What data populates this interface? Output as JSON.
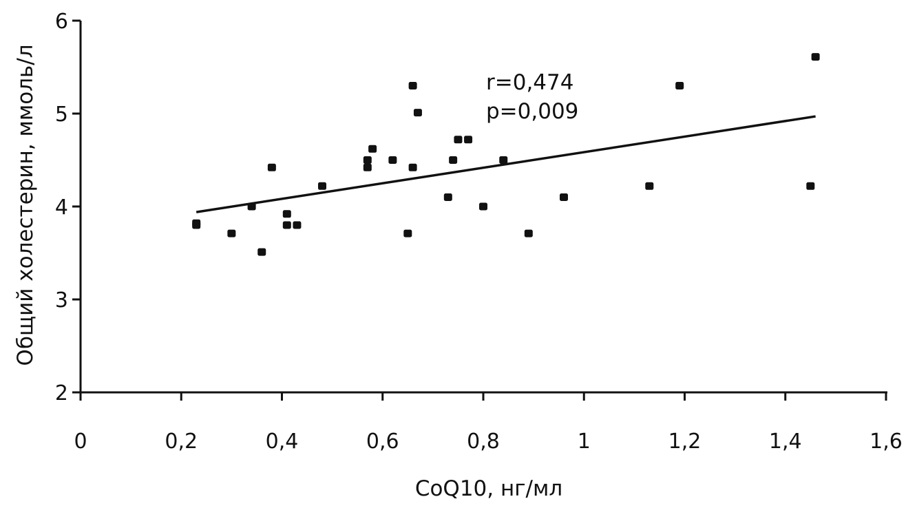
{
  "chart_data": {
    "type": "scatter",
    "title": "",
    "xlabel": "CoQ10, нг/мл",
    "ylabel": "Общий холестерин, ммоль/л",
    "xlim": [
      0,
      1.6
    ],
    "ylim": [
      2,
      6
    ],
    "x_ticks": [
      0,
      0.2,
      0.4,
      0.6,
      0.8,
      1.0,
      1.2,
      1.4,
      1.6
    ],
    "x_tick_labels": [
      "0",
      "0,2",
      "0,4",
      "0,6",
      "0,8",
      "1",
      "1,2",
      "1,4",
      "1,6"
    ],
    "y_ticks": [
      2,
      3,
      4,
      5,
      6
    ],
    "y_tick_labels": [
      "2",
      "3",
      "4",
      "5",
      "6"
    ],
    "grid": false,
    "legend": null,
    "annotations": [
      "r=0,474",
      "p=0,009"
    ],
    "marker_color": "#111111",
    "series": [
      {
        "name": "data",
        "points": [
          {
            "x": 0.23,
            "y": 3.8
          },
          {
            "x": 0.23,
            "y": 3.82
          },
          {
            "x": 0.3,
            "y": 3.71
          },
          {
            "x": 0.34,
            "y": 4.0
          },
          {
            "x": 0.36,
            "y": 3.51
          },
          {
            "x": 0.38,
            "y": 4.42
          },
          {
            "x": 0.41,
            "y": 3.92
          },
          {
            "x": 0.41,
            "y": 3.8
          },
          {
            "x": 0.43,
            "y": 3.8
          },
          {
            "x": 0.48,
            "y": 4.22
          },
          {
            "x": 0.57,
            "y": 4.5
          },
          {
            "x": 0.57,
            "y": 4.42
          },
          {
            "x": 0.58,
            "y": 4.62
          },
          {
            "x": 0.62,
            "y": 4.5
          },
          {
            "x": 0.65,
            "y": 3.71
          },
          {
            "x": 0.66,
            "y": 5.3
          },
          {
            "x": 0.66,
            "y": 4.42
          },
          {
            "x": 0.67,
            "y": 5.01
          },
          {
            "x": 0.73,
            "y": 4.1
          },
          {
            "x": 0.74,
            "y": 4.5
          },
          {
            "x": 0.75,
            "y": 4.72
          },
          {
            "x": 0.77,
            "y": 4.72
          },
          {
            "x": 0.8,
            "y": 4.0
          },
          {
            "x": 0.84,
            "y": 4.5
          },
          {
            "x": 0.89,
            "y": 3.71
          },
          {
            "x": 0.96,
            "y": 4.1
          },
          {
            "x": 1.13,
            "y": 4.22
          },
          {
            "x": 1.19,
            "y": 5.3
          },
          {
            "x": 1.45,
            "y": 4.22
          },
          {
            "x": 1.46,
            "y": 5.61
          }
        ]
      }
    ],
    "trendline": {
      "x": [
        0.23,
        1.46
      ],
      "y": [
        3.94,
        4.97
      ]
    }
  }
}
